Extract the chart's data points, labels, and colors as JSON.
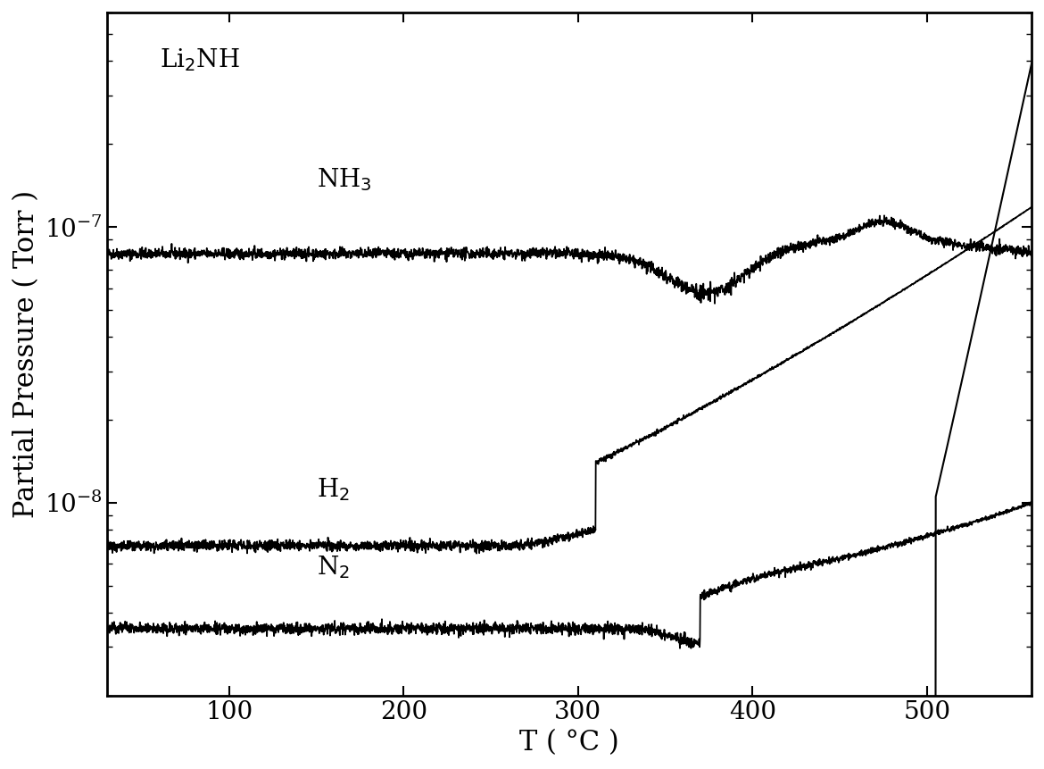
{
  "xlabel": "T ( °C )",
  "ylabel": "Partial Pressure ( Torr )",
  "xlim": [
    30,
    560
  ],
  "xticks": [
    100,
    200,
    300,
    400,
    500
  ],
  "line_color": "#000000",
  "background_color": "#ffffff",
  "font_size_labels": 22,
  "font_size_ticks": 20,
  "font_size_annotations": 20
}
